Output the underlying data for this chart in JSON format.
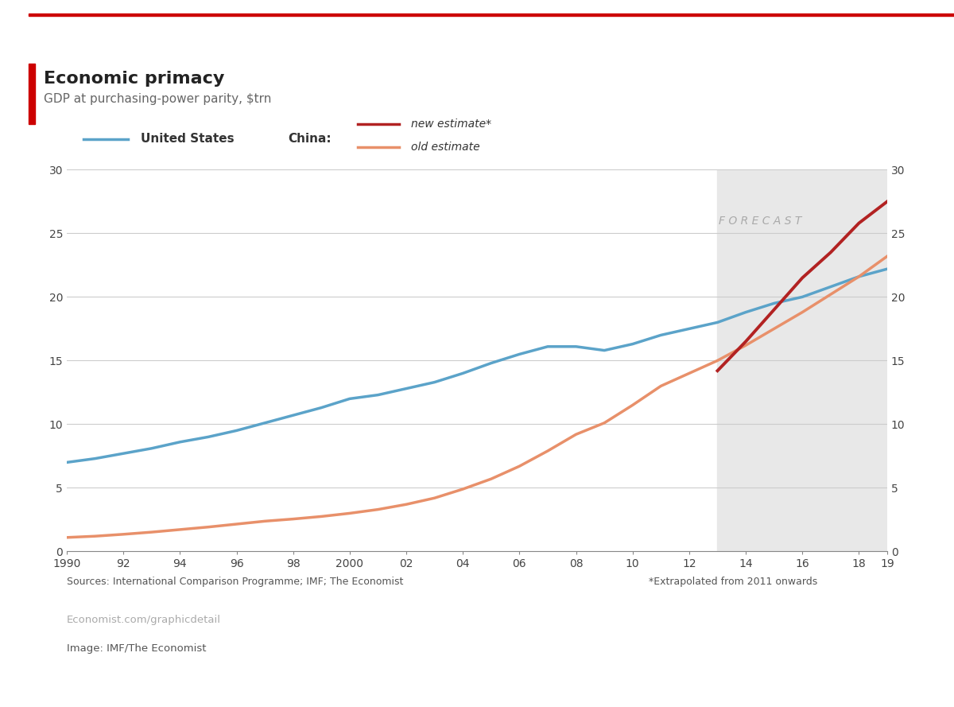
{
  "title": "Economic primacy",
  "subtitle": "GDP at purchasing-power parity, $trn",
  "source_text": "Sources: International Comparison Programme; IMF; The Economist",
  "footnote_text": "*Extrapolated from 2011 onwards",
  "website_text": "Economist.com/graphicdetail",
  "image_credit": "Image: IMF/The Economist",
  "forecast_start": 2013,
  "forecast_end": 2019,
  "forecast_label": "F O R E C A S T",
  "ylim": [
    0,
    30
  ],
  "yticks": [
    0,
    5,
    10,
    15,
    20,
    25,
    30
  ],
  "xticks": [
    1990,
    1992,
    1994,
    1996,
    1998,
    2000,
    2002,
    2004,
    2006,
    2008,
    2010,
    2012,
    2014,
    2016,
    2018,
    2019
  ],
  "xtick_labels": [
    "1990",
    "92",
    "94",
    "96",
    "98",
    "2000",
    "02",
    "04",
    "06",
    "08",
    "10",
    "12",
    "14",
    "16",
    "18",
    "19"
  ],
  "us_color": "#5ba3c9",
  "china_new_color": "#b22222",
  "china_old_color": "#e8906a",
  "background_color": "#ffffff",
  "forecast_bg_color": "#e8e8e8",
  "top_bar_color": "#cc0000",
  "title_bar_color": "#cc0000",
  "us_data": {
    "years": [
      1990,
      1991,
      1992,
      1993,
      1994,
      1995,
      1996,
      1997,
      1998,
      1999,
      2000,
      2001,
      2002,
      2003,
      2004,
      2005,
      2006,
      2007,
      2008,
      2009,
      2010,
      2011,
      2012,
      2013,
      2014,
      2015,
      2016,
      2017,
      2018,
      2019
    ],
    "values": [
      7.0,
      7.3,
      7.7,
      8.1,
      8.6,
      9.0,
      9.5,
      10.1,
      10.7,
      11.3,
      12.0,
      12.3,
      12.8,
      13.3,
      14.0,
      14.8,
      15.5,
      16.1,
      16.1,
      15.8,
      16.3,
      17.0,
      17.5,
      18.0,
      18.8,
      19.5,
      20.0,
      20.8,
      21.6,
      22.2
    ]
  },
  "china_old_data": {
    "years": [
      1990,
      1991,
      1992,
      1993,
      1994,
      1995,
      1996,
      1997,
      1998,
      1999,
      2000,
      2001,
      2002,
      2003,
      2004,
      2005,
      2006,
      2007,
      2008,
      2009,
      2010,
      2011,
      2012,
      2013,
      2014,
      2015,
      2016,
      2017,
      2018,
      2019
    ],
    "values": [
      1.1,
      1.2,
      1.35,
      1.52,
      1.72,
      1.92,
      2.15,
      2.38,
      2.55,
      2.75,
      3.0,
      3.3,
      3.7,
      4.2,
      4.9,
      5.7,
      6.7,
      7.9,
      9.2,
      10.1,
      11.5,
      13.0,
      14.0,
      15.0,
      16.2,
      17.5,
      18.8,
      20.2,
      21.6,
      23.2
    ]
  },
  "china_new_data": {
    "years": [
      2013,
      2014,
      2015,
      2016,
      2017,
      2018,
      2019
    ],
    "values": [
      14.2,
      16.5,
      19.0,
      21.5,
      23.5,
      25.8,
      27.5
    ]
  },
  "legend_us_label": "United States",
  "legend_china_label": "China:",
  "legend_new_label": "new estimate*",
  "legend_old_label": "old estimate"
}
